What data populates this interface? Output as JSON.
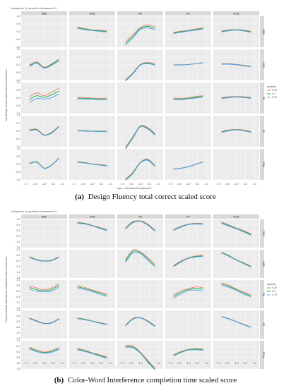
{
  "chart_data": [
    {
      "type": "line",
      "title": "h(exposure 1); quantiles of (exposure 2)",
      "xlabel": "Log₁₀ - transformed exposure 1",
      "ylabel": "h(z) Design Fluency total correct scaled score",
      "caption_tag": "(a)",
      "caption_text": "Design Fluency total correct scaled score",
      "columns": [
        "DDE",
        "HCB",
        "PB",
        "PE",
        "PCBs"
      ],
      "rows": [
        "DDE",
        "HCB",
        "PB",
        "PE",
        "PCBs"
      ],
      "legend_title": "quantile",
      "legend": [
        "0.25",
        "0.5",
        "0.75"
      ],
      "colors": [
        "#f8766d",
        "#00ba38",
        "#619cff"
      ],
      "x_ticks": [
        "-7.5",
        "-5.0",
        "-2.5",
        "0.0",
        "2.5"
      ],
      "y_ticks": [
        "-1.0",
        "-0.5",
        "0.0",
        "0.5",
        "1.0"
      ],
      "panels": [
        {
          "row": 0,
          "col": 1,
          "base": [
            0.26,
            0.17,
            0.1,
            0.06,
            0.02
          ],
          "spread": 0.04
        },
        {
          "row": 0,
          "col": 2,
          "base": [
            -0.75,
            -0.3,
            0.2,
            0.35,
            0.22
          ],
          "spread": 0.1
        },
        {
          "row": 0,
          "col": 3,
          "base": [
            -0.08,
            0.0,
            0.06,
            0.14,
            0.22
          ],
          "spread": 0.04
        },
        {
          "row": 0,
          "col": 4,
          "base": [
            0.02,
            0.09,
            0.12,
            0.08,
            -0.01
          ],
          "spread": 0.03
        },
        {
          "row": 1,
          "col": 0,
          "base": [
            -0.05,
            0.15,
            -0.18,
            0.02,
            0.32
          ],
          "spread": 0.05
        },
        {
          "row": 1,
          "col": 2,
          "base": [
            -1.0,
            -0.55,
            0.0,
            0.12,
            0.02
          ],
          "spread": 0.04
        },
        {
          "row": 1,
          "col": 3,
          "base": [
            0.0,
            0.0,
            0.02,
            0.08,
            0.14
          ],
          "spread": 0.01
        },
        {
          "row": 1,
          "col": 4,
          "base": [
            0.05,
            0.06,
            0.02,
            -0.04,
            -0.1
          ],
          "spread": 0.02
        },
        {
          "row": 2,
          "col": 0,
          "base": [
            -0.1,
            0.15,
            0.05,
            0.2,
            0.45
          ],
          "spread": 0.18
        },
        {
          "row": 2,
          "col": 1,
          "base": [
            0.0,
            -0.02,
            -0.04,
            -0.06,
            -0.05
          ],
          "spread": 0.05
        },
        {
          "row": 2,
          "col": 3,
          "base": [
            -0.05,
            -0.06,
            -0.02,
            0.05,
            0.1
          ],
          "spread": 0.05
        },
        {
          "row": 2,
          "col": 4,
          "base": [
            0.0,
            0.05,
            0.08,
            0.06,
            0.0
          ],
          "spread": 0.03
        },
        {
          "row": 3,
          "col": 0,
          "base": [
            0.05,
            0.1,
            -0.25,
            -0.1,
            0.3
          ],
          "spread": 0.03
        },
        {
          "row": 3,
          "col": 1,
          "base": [
            0.04,
            0.02,
            0.0,
            -0.01,
            -0.01
          ],
          "spread": 0.02
        },
        {
          "row": 3,
          "col": 2,
          "base": [
            -1.1,
            -0.4,
            0.3,
            0.2,
            -0.2
          ],
          "spread": 0.05
        },
        {
          "row": 3,
          "col": 4,
          "base": [
            -0.05,
            0.05,
            0.1,
            0.05,
            -0.05
          ],
          "spread": 0.03
        },
        {
          "row": 4,
          "col": 0,
          "base": [
            0.05,
            0.15,
            -0.25,
            -0.05,
            0.4
          ],
          "spread": 0.02
        },
        {
          "row": 4,
          "col": 1,
          "base": [
            0.15,
            0.1,
            0.02,
            -0.03,
            -0.08
          ],
          "spread": 0.02
        },
        {
          "row": 4,
          "col": 2,
          "base": [
            -1.0,
            -0.55,
            0.1,
            0.3,
            -0.1
          ],
          "spread": 0.04
        },
        {
          "row": 4,
          "col": 3,
          "base": [
            -0.3,
            -0.25,
            -0.15,
            0.0,
            0.15
          ],
          "spread": 0.01
        }
      ]
    },
    {
      "type": "line",
      "title": "h(exposure 1); quantiles of (exposure 2)",
      "xlabel": "Log₁₀ - transformed exposure 1",
      "ylabel": "h(z) Color-Word Interference completion time scaled score",
      "caption_tag": "(b)",
      "caption_text": "Color-Word Interference completion time scaled score",
      "columns": [
        "DDE",
        "HCB",
        "PB",
        "PE",
        "PCBs"
      ],
      "rows": [
        "DDE",
        "HCB",
        "PB",
        "PE",
        "PCBs"
      ],
      "legend_title": "quantile",
      "legend": [
        "0.25",
        "0.5",
        "0.75"
      ],
      "colors": [
        "#f8766d",
        "#00ba38",
        "#619cff"
      ],
      "x_ticks": [
        "-7.5",
        "-5.0",
        "-2.5",
        "0.0",
        "2.5"
      ],
      "y_ticks": [
        "-1.5",
        "-1.0",
        "-0.5",
        "0.0",
        "0.5",
        "1.0"
      ],
      "panels": [
        {
          "row": 0,
          "col": 1,
          "base": [
            0.7,
            0.62,
            0.45,
            0.25,
            0.05
          ],
          "spread": 0.04
        },
        {
          "row": 0,
          "col": 2,
          "base": [
            0.2,
            0.75,
            0.85,
            0.55,
            0.0
          ],
          "spread": 0.05
        },
        {
          "row": 0,
          "col": 3,
          "base": [
            0.05,
            0.35,
            0.55,
            0.62,
            0.6
          ],
          "spread": 0.04
        },
        {
          "row": 0,
          "col": 4,
          "base": [
            0.7,
            0.45,
            0.2,
            -0.05,
            -0.35
          ],
          "spread": 0.06
        },
        {
          "row": 1,
          "col": 0,
          "base": [
            0.35,
            0.1,
            0.0,
            0.05,
            0.35
          ],
          "spread": 0.03
        },
        {
          "row": 1,
          "col": 2,
          "base": [
            0.0,
            0.85,
            0.75,
            0.2,
            -0.4
          ],
          "spread": 0.12
        },
        {
          "row": 1,
          "col": 3,
          "base": [
            -0.45,
            -0.05,
            0.25,
            0.4,
            0.45
          ],
          "spread": 0.05
        },
        {
          "row": 1,
          "col": 4,
          "base": [
            0.75,
            0.45,
            0.1,
            -0.2,
            -0.5
          ],
          "spread": 0.04
        },
        {
          "row": 2,
          "col": 0,
          "base": [
            0.35,
            0.15,
            0.05,
            0.15,
            0.55
          ],
          "spread": 0.15
        },
        {
          "row": 2,
          "col": 1,
          "base": [
            0.4,
            0.25,
            0.05,
            -0.15,
            -0.35
          ],
          "spread": 0.1
        },
        {
          "row": 2,
          "col": 3,
          "base": [
            -0.45,
            -0.1,
            0.15,
            0.25,
            0.2
          ],
          "spread": 0.14
        },
        {
          "row": 2,
          "col": 4,
          "base": [
            0.65,
            0.45,
            0.15,
            -0.15,
            -0.4
          ],
          "spread": 0.1
        },
        {
          "row": 3,
          "col": 0,
          "base": [
            0.3,
            0.05,
            -0.15,
            -0.1,
            0.25
          ],
          "spread": 0.03
        },
        {
          "row": 3,
          "col": 1,
          "base": [
            0.3,
            0.2,
            0.05,
            -0.1,
            -0.25
          ],
          "spread": 0.03
        },
        {
          "row": 3,
          "col": 2,
          "base": [
            -0.35,
            0.25,
            0.35,
            0.05,
            -0.4
          ],
          "spread": 0.04
        },
        {
          "row": 3,
          "col": 4,
          "base": [
            0.45,
            0.25,
            0.0,
            -0.25,
            -0.5
          ],
          "spread": 0.02
        },
        {
          "row": 4,
          "col": 0,
          "base": [
            0.35,
            0.1,
            -0.05,
            0.05,
            0.3
          ],
          "spread": 0.08
        },
        {
          "row": 4,
          "col": 1,
          "base": [
            0.25,
            0.1,
            -0.1,
            -0.3,
            -0.5
          ],
          "spread": 0.06
        },
        {
          "row": 4,
          "col": 2,
          "base": [
            0.5,
            0.45,
            -0.05,
            -0.8,
            -1.5
          ],
          "spread": 0.08
        },
        {
          "row": 4,
          "col": 3,
          "base": [
            -0.3,
            0.0,
            0.2,
            0.25,
            0.2
          ],
          "spread": 0.05
        }
      ]
    }
  ]
}
